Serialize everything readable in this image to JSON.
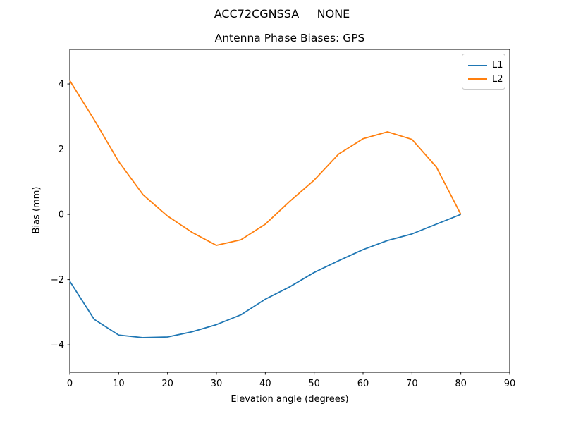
{
  "figure": {
    "suptitle": "ACC72CGNSSA     NONE",
    "background_color": "#ffffff"
  },
  "chart_data": {
    "type": "line",
    "title": "Antenna Phase Biases: GPS",
    "xlabel": "Elevation angle (degrees)",
    "ylabel": "Bias (mm)",
    "xlim": [
      0,
      90
    ],
    "ylim": [
      -4.84,
      5.06
    ],
    "grid": false,
    "legend_position": "upper right",
    "axis_color": "#000000",
    "xticks": [
      {
        "value": 0,
        "label": "0"
      },
      {
        "value": 10,
        "label": "10"
      },
      {
        "value": 20,
        "label": "20"
      },
      {
        "value": 30,
        "label": "30"
      },
      {
        "value": 40,
        "label": "40"
      },
      {
        "value": 50,
        "label": "50"
      },
      {
        "value": 60,
        "label": "60"
      },
      {
        "value": 70,
        "label": "70"
      },
      {
        "value": 80,
        "label": "80"
      },
      {
        "value": 90,
        "label": "90"
      }
    ],
    "yticks": [
      {
        "value": -4,
        "label": "−4"
      },
      {
        "value": -2,
        "label": "−2"
      },
      {
        "value": 0,
        "label": "0"
      },
      {
        "value": 2,
        "label": "2"
      },
      {
        "value": 4,
        "label": "4"
      }
    ],
    "x": [
      0,
      5,
      10,
      15,
      20,
      25,
      30,
      35,
      40,
      45,
      50,
      55,
      60,
      65,
      70,
      75,
      80
    ],
    "series": [
      {
        "name": "L1",
        "color": "#1f77b4",
        "values": [
          -2.05,
          -3.22,
          -3.7,
          -3.78,
          -3.76,
          -3.6,
          -3.38,
          -3.08,
          -2.6,
          -2.22,
          -1.78,
          -1.42,
          -1.08,
          -0.8,
          -0.6,
          -0.3,
          0.0
        ]
      },
      {
        "name": "L2",
        "color": "#ff7f0e",
        "values": [
          4.1,
          2.9,
          1.62,
          0.6,
          -0.05,
          -0.55,
          -0.95,
          -0.78,
          -0.3,
          0.4,
          1.05,
          1.85,
          2.32,
          2.53,
          2.3,
          1.45,
          0.0
        ]
      }
    ]
  }
}
